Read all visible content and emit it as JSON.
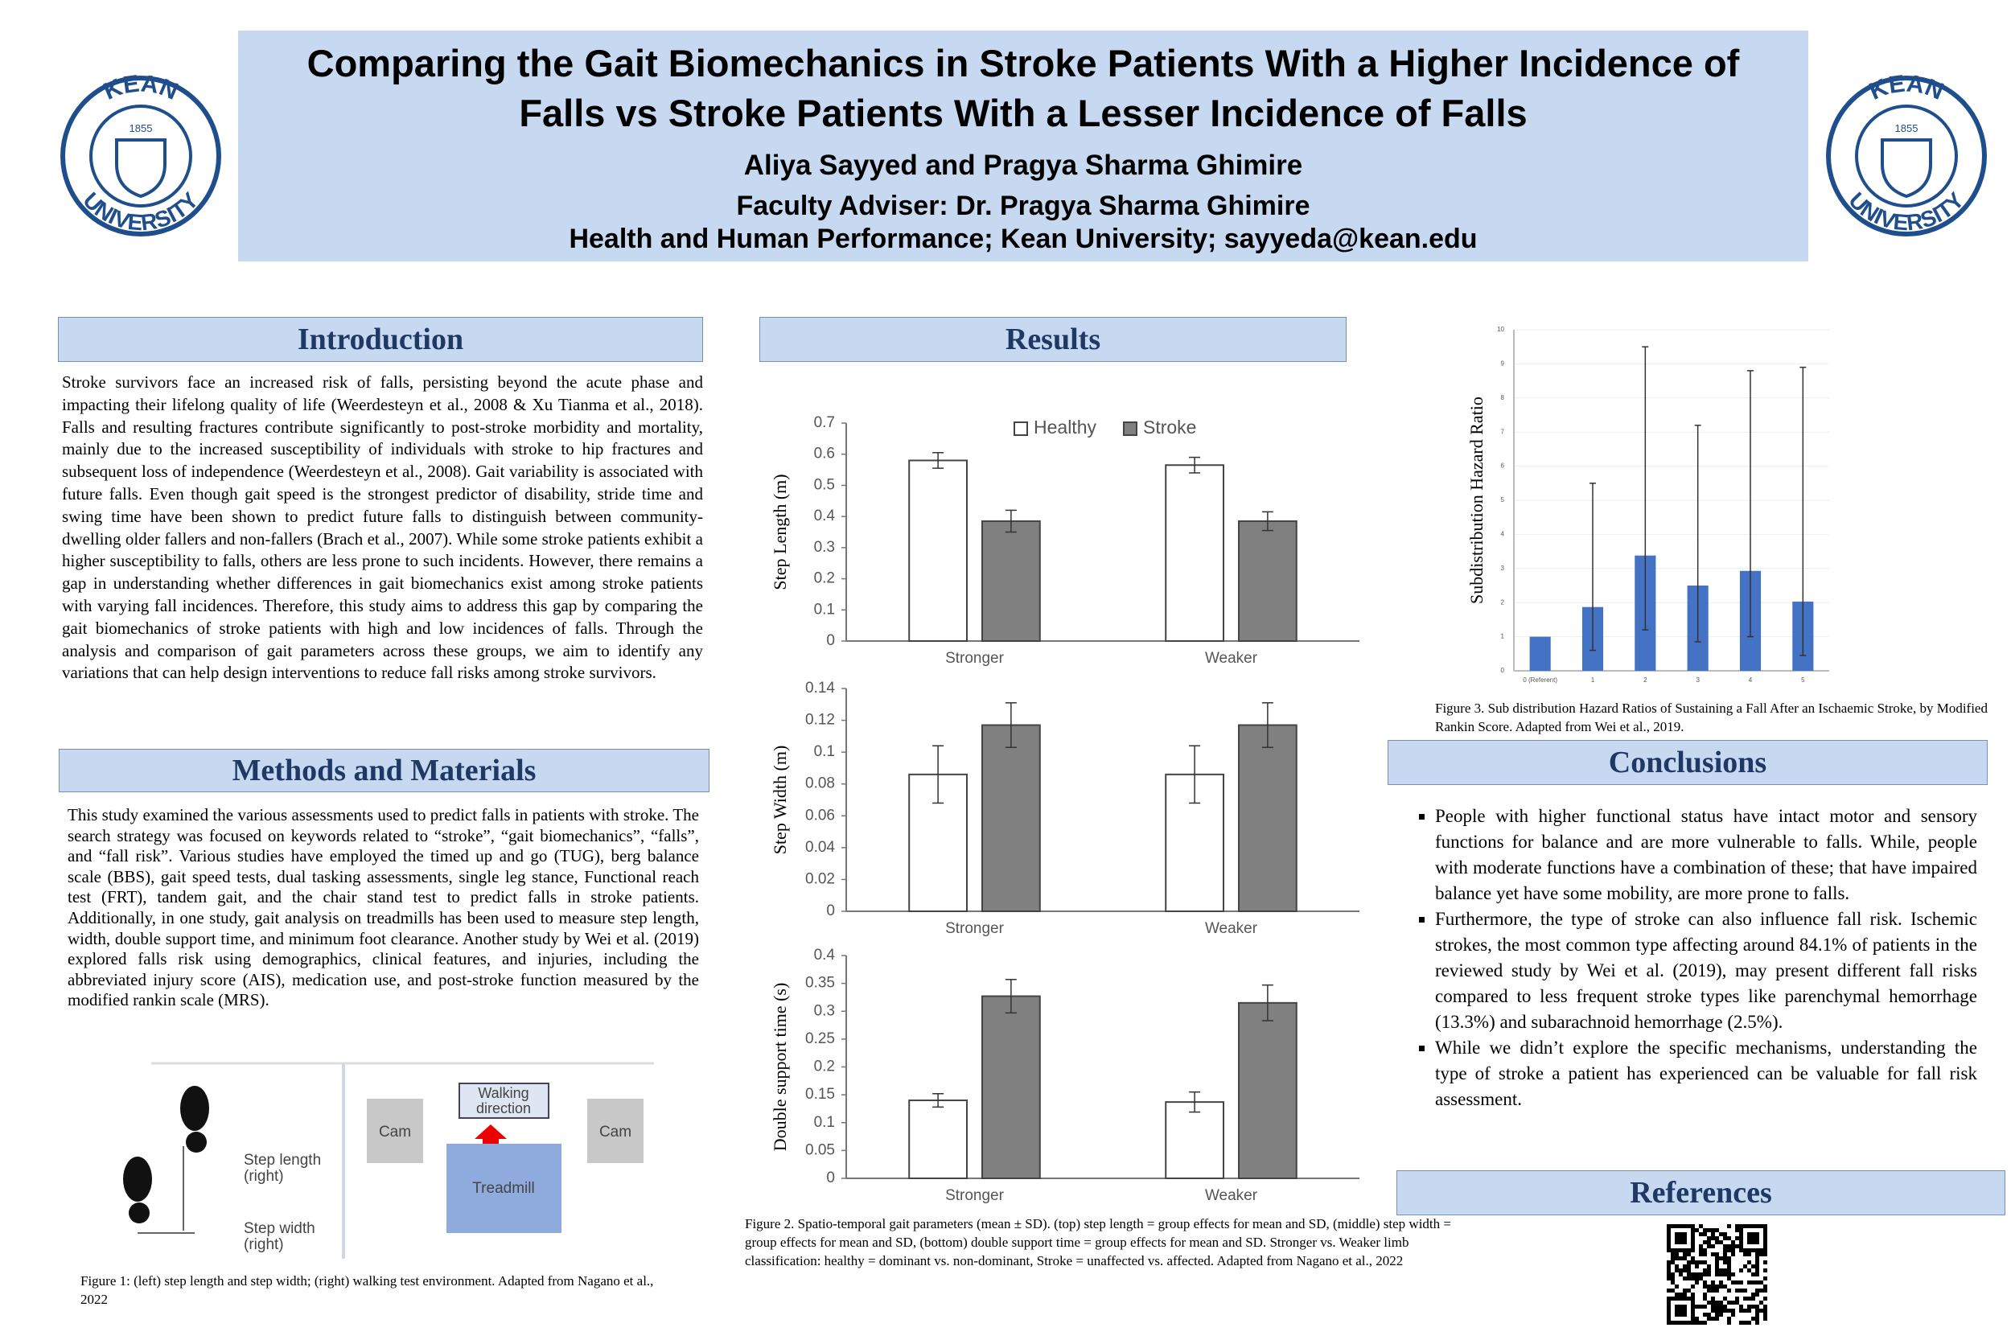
{
  "header": {
    "title": "Comparing the Gait Biomechanics in Stroke Patients With a Higher Incidence of Falls vs Stroke Patients With a Lesser Incidence of Falls",
    "authors": "Aliya Sayyed and Pragya Sharma Ghimire",
    "adviser": "Faculty Adviser: Dr. Pragya Sharma Ghimire",
    "affiliation": "Health and Human Performance; Kean University; sayyeda@kean.edu"
  },
  "logo": {
    "top": "KEAN",
    "bottom": "UNIVERSITY",
    "year": "1855"
  },
  "introduction": {
    "heading": "Introduction",
    "text": "Stroke survivors face an increased risk of falls, persisting beyond the acute phase and impacting their lifelong quality of life (Weerdesteyn et al., 2008 & Xu Tianma et al., 2018). Falls and resulting fractures contribute significantly to post-stroke morbidity and mortality, mainly due to the increased susceptibility of individuals with stroke to hip fractures and subsequent loss of independence (Weerdesteyn et al., 2008). Gait variability is associated with future falls. Even though gait speed is the strongest predictor of disability, stride time and swing time have been shown to predict future falls to distinguish between community-dwelling older fallers and non-fallers (Brach et al., 2007). While some stroke patients exhibit a higher susceptibility to falls, others are less prone to such incidents. However, there remains a gap in understanding whether differences in gait biomechanics exist among stroke patients with varying fall incidences. Therefore, this study aims to address this gap by comparing the gait biomechanics of stroke patients with high and low incidences of falls. Through the analysis and comparison of gait parameters across these groups, we aim to identify any variations that can help design interventions to reduce fall risks among stroke survivors."
  },
  "methods": {
    "heading": "Methods and Materials",
    "text": "This study examined the various assessments used to predict falls in patients with stroke. The search strategy was focused on keywords related to “stroke”, “gait biomechanics”, “falls”, and “fall risk”. Various studies have employed the timed up and go (TUG), berg balance scale (BBS), gait speed tests, dual tasking assessments, single leg stance, Functional reach test (FRT), tandem gait, and the chair stand test to predict falls in stroke patients. Additionally, in one study, gait analysis on treadmills has been used to measure step length, width, double support time, and minimum foot clearance. Another study by Wei et al. (2019) explored falls risk using demographics, clinical features, and injuries, including the abbreviated injury score (AIS), medication use, and post-stroke function measured by the modified rankin scale (MRS)."
  },
  "figure1": {
    "step_length": [
      "Step length",
      "(right)"
    ],
    "step_width": [
      "Step width",
      "(right)"
    ],
    "cam": "Cam",
    "walking_direction": [
      "Walking",
      "direction"
    ],
    "treadmill": "Treadmill",
    "caption": "Figure 1: (left) step length and step width; (right) walking test environment. Adapted from Nagano et al., 2022"
  },
  "results": {
    "heading": "Results"
  },
  "chart_data": [
    {
      "type": "bar",
      "y_label": "Step Length (m)",
      "categories": [
        "Stronger",
        "Weaker"
      ],
      "legend": "top",
      "series": [
        {
          "name": "Healthy",
          "color": "#ffffff",
          "values": [
            0.58,
            0.565
          ],
          "errors": [
            0.025,
            0.025
          ]
        },
        {
          "name": "Stroke",
          "color": "#808080",
          "values": [
            0.385,
            0.385
          ],
          "errors": [
            0.035,
            0.03
          ]
        }
      ],
      "ylim": [
        0,
        0.7
      ],
      "yticks": [
        0,
        0.1,
        0.2,
        0.3,
        0.4,
        0.5,
        0.6,
        0.7
      ]
    },
    {
      "type": "bar",
      "y_label": "Step Width (m)",
      "categories": [
        "Stronger",
        "Weaker"
      ],
      "series": [
        {
          "color": "#ffffff",
          "values": [
            0.086,
            0.086
          ],
          "errors": [
            0.018,
            0.018
          ]
        },
        {
          "color": "#808080",
          "values": [
            0.117,
            0.117
          ],
          "errors": [
            0.014,
            0.014
          ]
        }
      ],
      "ylim": [
        0,
        0.14
      ],
      "yticks": [
        0,
        0.02,
        0.04,
        0.06,
        0.08,
        0.1,
        0.12,
        0.14
      ]
    },
    {
      "type": "bar",
      "y_label": "Double support time (s)",
      "categories": [
        "Stronger",
        "Weaker"
      ],
      "series": [
        {
          "color": "#ffffff",
          "values": [
            0.14,
            0.137
          ],
          "errors": [
            0.012,
            0.018
          ]
        },
        {
          "color": "#808080",
          "values": [
            0.327,
            0.315
          ],
          "errors": [
            0.03,
            0.032
          ]
        }
      ],
      "ylim": [
        0,
        0.4
      ],
      "yticks": [
        0,
        0.05,
        0.1,
        0.15,
        0.2,
        0.25,
        0.3,
        0.35,
        0.4
      ]
    },
    {
      "type": "bar",
      "y_label": "Subdistribution Hazard Ratio",
      "categories": [
        "0 (Referent)",
        "1",
        "2",
        "3",
        "4",
        "5"
      ],
      "values": [
        1,
        1.87,
        3.38,
        2.5,
        2.93,
        2.03
      ],
      "ci_low": [
        null,
        0.6,
        1.2,
        0.85,
        1.0,
        0.45
      ],
      "ci_high": [
        null,
        5.5,
        9.5,
        7.2,
        8.8,
        8.9
      ],
      "color": "#4472c4",
      "ylim": [
        0,
        10
      ],
      "yticks": [
        0,
        1,
        2,
        3,
        4,
        5,
        6,
        7,
        8,
        9,
        10
      ],
      "grid": true
    }
  ],
  "figure2": {
    "caption": "Figure 2. Spatio-temporal gait parameters (mean ± SD). (top) step length = group effects for mean and SD, (middle) step width = group effects for mean and SD, (bottom) double support time = group effects for mean and SD. Stronger vs. Weaker limb classification: healthy = dominant vs. non-dominant, Stroke = unaffected vs. affected.  Adapted from Nagano et al., 2022"
  },
  "figure3": {
    "caption": "Figure 3. Sub distribution Hazard Ratios of Sustaining a Fall After an Ischaemic Stroke, by Modified Rankin Score. Adapted from Wei et al., 2019."
  },
  "conclusions": {
    "heading": "Conclusions",
    "items": [
      "People with higher functional status have intact motor and sensory functions for balance and are more vulnerable to falls. While, people with moderate functions have a combination of these; that have impaired balance yet have some mobility, are more prone to falls.",
      "Furthermore, the type of stroke can also influence fall risk. Ischemic strokes, the most common type affecting around 84.1% of patients in the reviewed study by Wei et al. (2019), may present different fall risks compared to less frequent stroke types like parenchymal hemorrhage (13.3%) and subarachnoid hemorrhage (2.5%).",
      "While we didn’t explore the specific mechanisms, understanding the type of stroke a patient has experienced can be valuable for fall risk assessment."
    ]
  },
  "references": {
    "heading": "References"
  }
}
